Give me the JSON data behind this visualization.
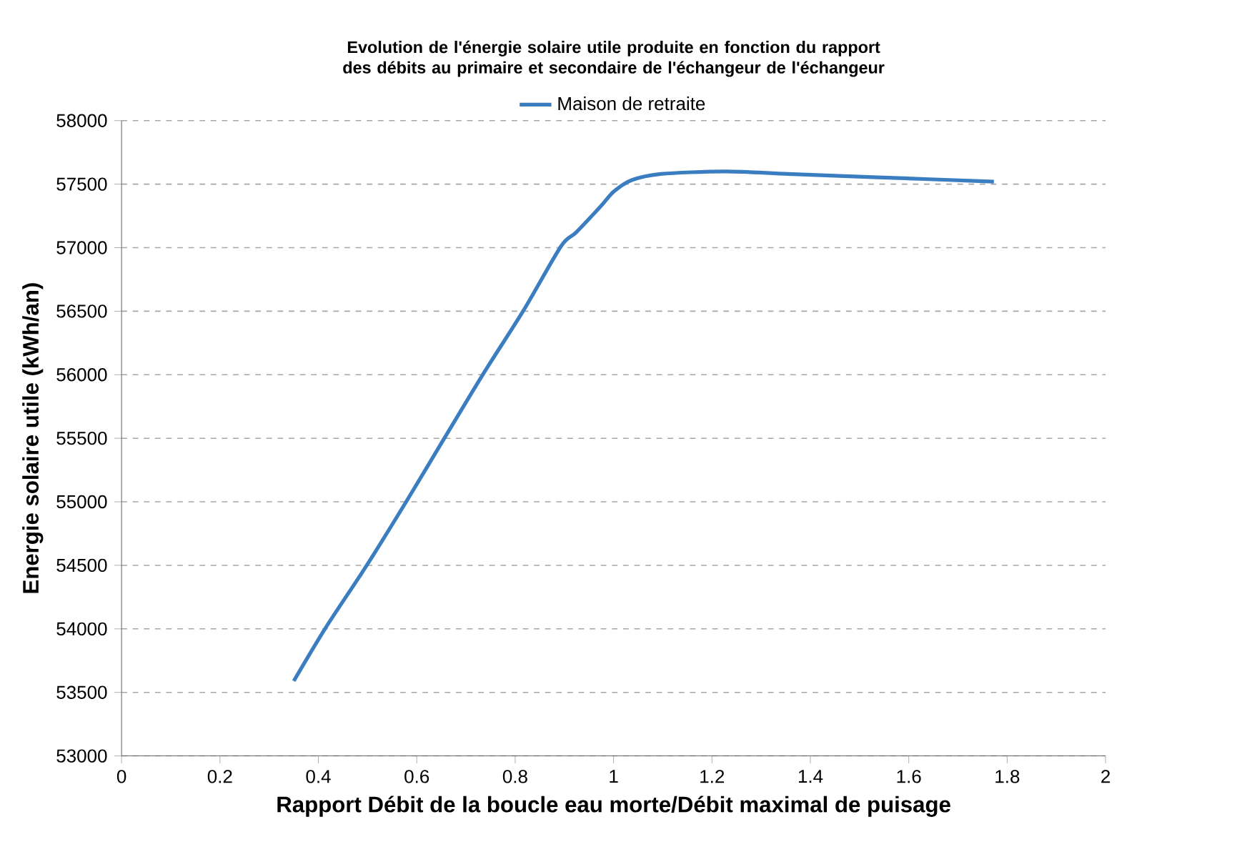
{
  "chart_data": {
    "type": "line",
    "title": "Evolution de l'énergie solaire utile produite en fonction du rapport des débits au primaire et secondaire de l'échangeur de l'échangeur",
    "xlabel": "Rapport Débit de la boucle eau morte/Débit maximal de puisage",
    "ylabel": "Energie solaire utile (kWh/an)",
    "series": [
      {
        "name": "Maison de retraite",
        "color": "#3a7dc1",
        "x": [
          0.35,
          0.415,
          0.5,
          0.58,
          0.656,
          0.734,
          0.816,
          0.893,
          0.924,
          0.975,
          1.0,
          1.036,
          1.096,
          1.226,
          1.355,
          1.527,
          1.773
        ],
        "values": [
          53590,
          54010,
          54510,
          55010,
          55500,
          56000,
          56500,
          57010,
          57120,
          57330,
          57440,
          57530,
          57580,
          57600,
          57580,
          57555,
          57520
        ]
      }
    ],
    "xlim": [
      0,
      2
    ],
    "xticks": [
      0,
      0.2,
      0.4,
      0.6,
      0.8,
      1,
      1.2,
      1.4,
      1.6,
      1.8,
      2
    ],
    "ylim": [
      53000,
      58000
    ],
    "yticks": [
      53000,
      53500,
      54000,
      54500,
      55000,
      55500,
      56000,
      56500,
      57000,
      57500,
      58000
    ],
    "grid": "y",
    "legend": "top",
    "marker": "none",
    "line_style": "solid"
  }
}
